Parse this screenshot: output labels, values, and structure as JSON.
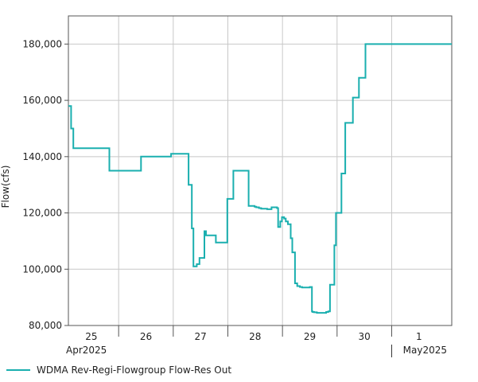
{
  "chart_data": {
    "type": "line",
    "ylabel": "Flow(cfs)",
    "ylim": [
      80000,
      190000
    ],
    "y_ticks": [
      80000,
      100000,
      120000,
      140000,
      160000,
      180000
    ],
    "y_tick_labels": [
      "80,000",
      "100,000",
      "120,000",
      "140,000",
      "160,000",
      "180,000"
    ],
    "x_unit": "days since 2025-04-24 00:00",
    "xlim": [
      0.58,
      7.6
    ],
    "x_day_ticks": [
      {
        "label": "25",
        "pos": 1.0
      },
      {
        "label": "26",
        "pos": 2.0
      },
      {
        "label": "27",
        "pos": 3.0
      },
      {
        "label": "28",
        "pos": 4.0
      },
      {
        "label": "29",
        "pos": 5.0
      },
      {
        "label": "30",
        "pos": 6.0
      },
      {
        "label": "1",
        "pos": 7.0
      }
    ],
    "x_boundaries": [
      1.5,
      2.5,
      3.5,
      4.5,
      5.5,
      6.5
    ],
    "month_labels": [
      {
        "label": "Apr2025",
        "pos": 0.58,
        "anchor": "start"
      },
      {
        "label": "May2025",
        "pos": 7.6,
        "anchor": "end"
      }
    ],
    "month_separator": 6.5,
    "grid": true,
    "line_color": "#1aafaf",
    "series": [
      {
        "name": "WDMA Rev-Regi-Flowgroup Flow-Res Out",
        "step": true,
        "x": [
          0.58,
          0.63,
          0.67,
          1.25,
          1.33,
          1.91,
          1.93,
          2.42,
          2.46,
          2.58,
          2.72,
          2.78,
          2.84,
          2.87,
          2.93,
          2.98,
          3.03,
          3.07,
          3.1,
          3.28,
          3.49,
          3.6,
          3.66,
          3.7,
          3.79,
          3.84,
          3.88,
          3.99,
          4.02,
          4.07,
          4.11,
          4.15,
          4.19,
          4.22,
          4.25,
          4.3,
          4.35,
          4.4,
          4.42,
          4.46,
          4.49,
          4.53,
          4.56,
          4.6,
          4.65,
          4.68,
          4.73,
          4.77,
          4.82,
          4.86,
          4.92,
          5.0,
          5.04,
          5.05,
          5.08,
          5.13,
          5.17,
          5.25,
          5.3,
          5.34,
          5.37,
          5.45,
          5.48,
          5.52,
          5.58,
          5.65,
          5.79,
          5.9,
          6.02,
          6.2,
          6.24,
          6.33,
          6.37,
          6.4,
          6.44,
          6.47,
          6.5,
          6.54,
          7.6
        ],
        "y": [
          158000,
          150000,
          143000,
          143000,
          135000,
          140000,
          140000,
          140000,
          141000,
          141000,
          141000,
          130000,
          114500,
          101000,
          101800,
          104000,
          104000,
          113500,
          112000,
          109500,
          125000,
          135000,
          135000,
          135000,
          135000,
          135000,
          122500,
          122200,
          122000,
          121700,
          121500,
          121500,
          121500,
          121300,
          121300,
          122000,
          122000,
          121700,
          115000,
          117000,
          118500,
          118000,
          117000,
          116000,
          111000,
          106000,
          95000,
          94000,
          93700,
          93500,
          93500,
          93700,
          85000,
          84800,
          84700,
          84500,
          84500,
          84500,
          84800,
          85000,
          94500,
          108500,
          120000,
          120000,
          134000,
          152000,
          161000,
          168000,
          180000,
          180000,
          180000,
          180000,
          180000,
          180000,
          180000,
          180000,
          180000,
          180000,
          180000
        ]
      }
    ]
  }
}
